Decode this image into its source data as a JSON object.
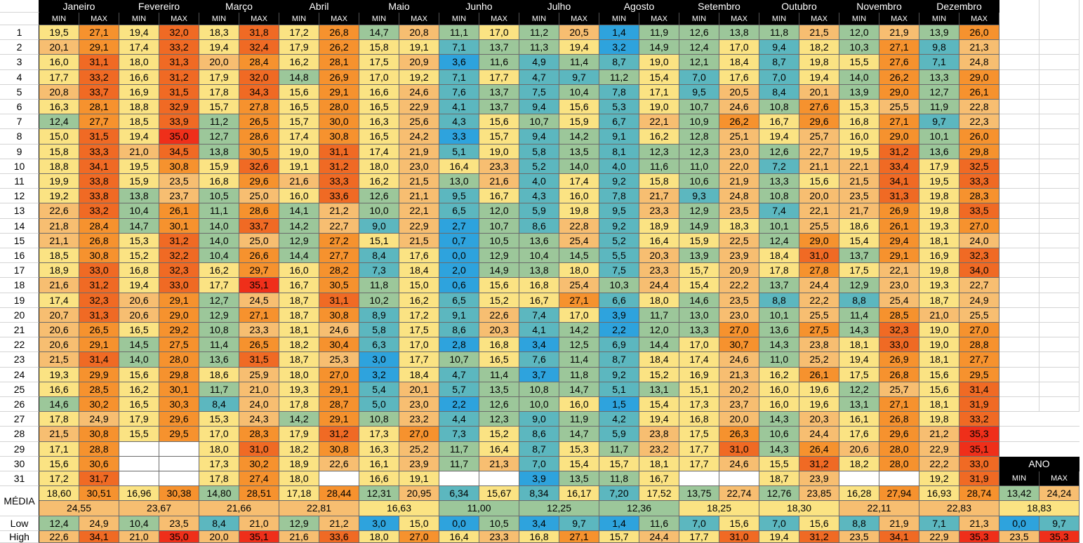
{
  "months": [
    "Janeiro",
    "Fevereiro",
    "Março",
    "Abril",
    "Maio",
    "Junho",
    "Julho",
    "Agosto",
    "Setembro",
    "Outubro",
    "Novembro",
    "Dezembro"
  ],
  "col_min": "MIN",
  "col_max": "MAX",
  "days": [
    "1",
    "2",
    "3",
    "4",
    "5",
    "6",
    "7",
    "8",
    "9",
    "10",
    "11",
    "12",
    "13",
    "14",
    "15",
    "16",
    "17",
    "18",
    "19",
    "20",
    "21",
    "22",
    "23",
    "24",
    "25",
    "26",
    "27",
    "28",
    "29",
    "30",
    "31"
  ],
  "label_media": "MÉDIA",
  "label_low": "Low",
  "label_high": "High",
  "label_ano": "ANO",
  "min": [
    [
      "19,5",
      "20,1",
      "16,0",
      "17,7",
      "20,8",
      "16,3",
      "12,4",
      "15,0",
      "15,8",
      "18,8",
      "19,9",
      "19,2",
      "22,6",
      "21,8",
      "21,1",
      "18,5",
      "18,9",
      "21,6",
      "17,4",
      "20,7",
      "20,6",
      "20,6",
      "21,5",
      "19,3",
      "16,6",
      "14,6",
      "17,8",
      "21,5",
      "17,1",
      "15,6",
      "17,2"
    ],
    [
      "19,4",
      "17,4",
      "18,0",
      "16,6",
      "16,9",
      "18,8",
      "18,5",
      "19,4",
      "21,0",
      "19,5",
      "15,9",
      "13,8",
      "10,4",
      "14,7",
      "15,3",
      "15,2",
      "16,8",
      "19,4",
      "20,6",
      "20,6",
      "16,5",
      "14,5",
      "14,0",
      "15,6",
      "16,2",
      "16,5",
      "17,9",
      "15,5",
      "",
      "",
      ""
    ],
    [
      "18,3",
      "19,4",
      "20,0",
      "17,9",
      "17,8",
      "15,7",
      "11,2",
      "12,7",
      "13,8",
      "15,9",
      "16,8",
      "10,5",
      "11,1",
      "14,0",
      "14,0",
      "10,4",
      "16,2",
      "17,7",
      "12,7",
      "12,9",
      "10,8",
      "11,4",
      "13,6",
      "18,6",
      "11,7",
      "8,4",
      "15,3",
      "17,0",
      "18,0",
      "17,3",
      "17,8"
    ],
    [
      "17,2",
      "17,9",
      "16,2",
      "14,8",
      "15,6",
      "16,5",
      "15,7",
      "17,4",
      "19,0",
      "19,1",
      "21,6",
      "16,0",
      "14,1",
      "14,2",
      "12,9",
      "14,4",
      "16,0",
      "16,7",
      "18,7",
      "18,7",
      "18,1",
      "18,2",
      "18,7",
      "18,0",
      "19,3",
      "17,8",
      "14,2",
      "17,9",
      "18,2",
      "18,9",
      "18,0"
    ],
    [
      "14,7",
      "15,8",
      "17,5",
      "17,0",
      "16,6",
      "16,5",
      "16,3",
      "16,5",
      "17,4",
      "18,0",
      "16,2",
      "12,6",
      "10,0",
      "9,0",
      "15,1",
      "8,4",
      "7,3",
      "11,8",
      "10,2",
      "8,9",
      "5,8",
      "6,3",
      "3,0",
      "3,2",
      "5,4",
      "5,0",
      "10,8",
      "17,3",
      "16,3",
      "16,1",
      "16,6"
    ],
    [
      "11,1",
      "7,1",
      "3,6",
      "7,1",
      "7,6",
      "4,1",
      "4,3",
      "3,3",
      "5,1",
      "16,4",
      "13,0",
      "9,5",
      "6,5",
      "2,7",
      "0,7",
      "0,0",
      "2,0",
      "0,6",
      "6,5",
      "9,1",
      "8,6",
      "2,8",
      "10,7",
      "4,7",
      "5,7",
      "2,2",
      "4,4",
      "7,3",
      "11,7",
      "11,7",
      ""
    ],
    [
      "11,2",
      "11,3",
      "4,9",
      "4,7",
      "7,5",
      "9,4",
      "10,7",
      "9,4",
      "5,8",
      "5,2",
      "4,0",
      "4,3",
      "5,9",
      "8,6",
      "13,6",
      "10,4",
      "13,8",
      "16,8",
      "16,7",
      "7,4",
      "4,1",
      "3,4",
      "7,6",
      "3,7",
      "10,8",
      "10,0",
      "9,0",
      "8,6",
      "8,7",
      "7,0",
      "3,9"
    ],
    [
      "1,4",
      "3,2",
      "8,7",
      "11,2",
      "7,8",
      "5,3",
      "6,7",
      "9,1",
      "8,1",
      "4,0",
      "9,2",
      "7,8",
      "9,5",
      "9,2",
      "5,2",
      "5,5",
      "7,5",
      "10,3",
      "6,6",
      "3,9",
      "2,2",
      "6,9",
      "8,7",
      "9,2",
      "5,1",
      "1,5",
      "4,2",
      "5,9",
      "11,7",
      "15,7",
      "11,8"
    ],
    [
      "12,6",
      "12,4",
      "12,1",
      "7,0",
      "9,5",
      "10,7",
      "10,9",
      "12,8",
      "12,3",
      "11,0",
      "10,6",
      "9,3",
      "12,9",
      "14,9",
      "15,9",
      "13,9",
      "15,7",
      "15,4",
      "14,6",
      "13,0",
      "13,3",
      "17,0",
      "17,4",
      "16,9",
      "15,1",
      "17,3",
      "16,8",
      "17,5",
      "17,7",
      "17,7",
      ""
    ],
    [
      "11,8",
      "9,4",
      "8,7",
      "7,0",
      "8,4",
      "10,8",
      "16,7",
      "19,4",
      "12,6",
      "7,2",
      "13,3",
      "10,8",
      "7,4",
      "10,1",
      "12,4",
      "18,4",
      "17,8",
      "13,7",
      "8,8",
      "10,1",
      "13,6",
      "14,3",
      "11,0",
      "16,2",
      "16,0",
      "16,0",
      "14,3",
      "10,6",
      "14,3",
      "15,5",
      "18,7"
    ],
    [
      "12,0",
      "10,3",
      "15,5",
      "14,0",
      "13,9",
      "15,3",
      "16,8",
      "16,0",
      "19,5",
      "22,1",
      "21,5",
      "23,5",
      "21,7",
      "18,6",
      "15,4",
      "13,7",
      "17,5",
      "12,9",
      "8,8",
      "11,4",
      "14,3",
      "18,1",
      "19,4",
      "17,5",
      "12,2",
      "13,1",
      "16,1",
      "17,6",
      "20,6",
      "18,2",
      ""
    ],
    [
      "13,9",
      "9,8",
      "7,1",
      "13,3",
      "12,7",
      "11,9",
      "9,7",
      "10,1",
      "13,6",
      "17,9",
      "19,5",
      "19,8",
      "19,8",
      "19,3",
      "18,1",
      "16,9",
      "19,8",
      "19,3",
      "18,7",
      "21,0",
      "19,0",
      "19,0",
      "18,1",
      "15,6",
      "15,6",
      "18,1",
      "19,8",
      "21,2",
      "22,9",
      "22,2",
      "19,2"
    ]
  ],
  "max": [
    [
      "27,1",
      "29,1",
      "31,1",
      "33,2",
      "33,7",
      "28,1",
      "27,7",
      "31,5",
      "33,3",
      "34,1",
      "33,8",
      "33,8",
      "33,2",
      "28,4",
      "26,8",
      "30,8",
      "33,0",
      "31,2",
      "32,3",
      "31,3",
      "26,5",
      "29,1",
      "31,4",
      "29,9",
      "28,5",
      "30,2",
      "24,9",
      "30,8",
      "28,8",
      "30,6",
      "31,7"
    ],
    [
      "32,0",
      "33,2",
      "31,3",
      "31,2",
      "31,5",
      "32,9",
      "33,9",
      "35,0",
      "34,5",
      "30,8",
      "23,5",
      "23,7",
      "26,1",
      "30,1",
      "31,2",
      "32,2",
      "32,3",
      "33,0",
      "29,1",
      "29,0",
      "29,2",
      "27,5",
      "28,0",
      "29,8",
      "30,1",
      "30,3",
      "29,6",
      "29,5",
      "",
      "",
      ""
    ],
    [
      "31,8",
      "32,4",
      "28,4",
      "32,0",
      "34,3",
      "27,8",
      "26,5",
      "28,6",
      "30,5",
      "32,6",
      "29,6",
      "25,0",
      "28,6",
      "33,7",
      "25,0",
      "26,6",
      "29,7",
      "35,1",
      "24,5",
      "27,1",
      "23,3",
      "26,5",
      "31,5",
      "25,9",
      "21,0",
      "24,0",
      "24,3",
      "28,3",
      "31,0",
      "30,2",
      "27,4"
    ],
    [
      "26,8",
      "26,2",
      "28,1",
      "26,9",
      "29,1",
      "28,0",
      "30,0",
      "30,8",
      "31,1",
      "31,2",
      "33,3",
      "33,6",
      "21,2",
      "22,7",
      "27,2",
      "27,7",
      "28,2",
      "30,5",
      "31,1",
      "30,8",
      "24,6",
      "30,4",
      "25,3",
      "27,0",
      "29,1",
      "28,7",
      "29,1",
      "31,2",
      "30,8",
      "22,6",
      ""
    ],
    [
      "20,8",
      "19,1",
      "20,9",
      "19,2",
      "24,6",
      "22,9",
      "25,6",
      "24,2",
      "21,9",
      "23,0",
      "21,5",
      "21,1",
      "22,1",
      "22,9",
      "21,5",
      "17,6",
      "18,4",
      "15,0",
      "16,2",
      "17,2",
      "17,5",
      "17,0",
      "17,7",
      "18,4",
      "20,1",
      "23,0",
      "23,2",
      "27,0",
      "25,2",
      "23,9",
      "19,1"
    ],
    [
      "17,0",
      "13,7",
      "11,6",
      "17,7",
      "13,7",
      "13,7",
      "15,6",
      "15,7",
      "19,0",
      "23,3",
      "21,6",
      "16,7",
      "12,0",
      "10,7",
      "10,5",
      "12,9",
      "14,9",
      "15,6",
      "15,2",
      "22,6",
      "20,3",
      "16,8",
      "16,5",
      "11,4",
      "13,5",
      "12,6",
      "12,3",
      "15,2",
      "16,4",
      "21,3",
      ""
    ],
    [
      "20,5",
      "19,4",
      "11,4",
      "9,7",
      "10,4",
      "15,6",
      "15,9",
      "14,2",
      "13,5",
      "14,0",
      "17,4",
      "16,0",
      "19,8",
      "22,8",
      "25,4",
      "14,5",
      "18,0",
      "25,4",
      "27,1",
      "17,0",
      "14,2",
      "12,5",
      "11,4",
      "11,8",
      "14,7",
      "16,0",
      "11,9",
      "14,7",
      "15,3",
      "15,4",
      "13,5"
    ],
    [
      "11,9",
      "14,9",
      "19,0",
      "15,4",
      "17,1",
      "19,0",
      "22,1",
      "16,2",
      "12,3",
      "11,6",
      "15,8",
      "21,7",
      "23,3",
      "18,9",
      "16,4",
      "20,3",
      "23,3",
      "24,4",
      "18,0",
      "11,7",
      "12,0",
      "14,4",
      "18,4",
      "15,2",
      "13,1",
      "15,4",
      "19,4",
      "23,8",
      "23,2",
      "18,1",
      "16,7"
    ],
    [
      "13,8",
      "17,0",
      "18,4",
      "17,6",
      "20,5",
      "24,6",
      "26,2",
      "25,1",
      "23,0",
      "22,0",
      "21,9",
      "24,8",
      "23,5",
      "18,3",
      "22,5",
      "23,9",
      "20,9",
      "22,2",
      "23,5",
      "23,0",
      "27,0",
      "30,7",
      "24,6",
      "21,3",
      "20,2",
      "23,7",
      "20,0",
      "26,3",
      "31,0",
      "24,6",
      ""
    ],
    [
      "21,5",
      "18,2",
      "19,8",
      "19,4",
      "20,1",
      "27,6",
      "29,6",
      "25,7",
      "22,7",
      "21,1",
      "15,6",
      "20,0",
      "22,1",
      "25,5",
      "29,0",
      "31,0",
      "27,8",
      "24,4",
      "22,2",
      "25,5",
      "27,5",
      "23,8",
      "25,2",
      "26,1",
      "19,6",
      "19,6",
      "20,3",
      "24,4",
      "26,4",
      "31,2",
      "23,9"
    ],
    [
      "21,9",
      "27,1",
      "27,6",
      "26,2",
      "29,0",
      "25,5",
      "27,1",
      "29,0",
      "31,2",
      "33,4",
      "34,1",
      "31,3",
      "26,9",
      "26,1",
      "29,4",
      "29,1",
      "22,1",
      "23,0",
      "25,4",
      "28,5",
      "32,3",
      "33,0",
      "26,9",
      "26,8",
      "25,7",
      "27,1",
      "26,8",
      "29,6",
      "28,0",
      "28,0",
      ""
    ],
    [
      "26,0",
      "21,3",
      "24,8",
      "29,0",
      "26,1",
      "22,8",
      "22,3",
      "26,0",
      "29,8",
      "32,5",
      "33,3",
      "28,3",
      "33,5",
      "27,0",
      "24,0",
      "32,3",
      "34,0",
      "22,7",
      "24,9",
      "25,5",
      "27,0",
      "28,8",
      "27,7",
      "29,5",
      "31,4",
      "31,9",
      "33,2",
      "35,3",
      "35,1",
      "33,0",
      "31,9"
    ]
  ],
  "media_min": [
    "18,60",
    "16,96",
    "14,80",
    "17,18",
    "12,31",
    "6,34",
    "8,34",
    "7,20",
    "13,75",
    "12,76",
    "16,28",
    "16,93"
  ],
  "media_max": [
    "30,51",
    "30,38",
    "28,51",
    "28,44",
    "20,95",
    "15,67",
    "16,17",
    "17,52",
    "22,74",
    "23,85",
    "27,94",
    "28,74"
  ],
  "media_avg": [
    "24,55",
    "23,67",
    "21,66",
    "22,81",
    "16,63",
    "11,00",
    "12,25",
    "12,36",
    "18,25",
    "18,30",
    "22,11",
    "22,83"
  ],
  "low_min": [
    "12,4",
    "10,4",
    "8,4",
    "12,9",
    "3,0",
    "0,0",
    "3,4",
    "1,4",
    "7,0",
    "7,0",
    "8,8",
    "7,1"
  ],
  "low_max": [
    "24,9",
    "23,5",
    "21,0",
    "21,2",
    "15,0",
    "10,5",
    "9,7",
    "11,6",
    "15,6",
    "15,6",
    "21,9",
    "21,3"
  ],
  "high_min": [
    "22,6",
    "21,0",
    "20,0",
    "21,6",
    "18,0",
    "16,4",
    "16,8",
    "15,7",
    "17,7",
    "19,4",
    "23,5",
    "22,9"
  ],
  "high_max": [
    "34,1",
    "35,0",
    "35,1",
    "33,6",
    "27,0",
    "23,3",
    "27,1",
    "24,4",
    "31,0",
    "31,2",
    "34,1",
    "35,3"
  ],
  "ano": {
    "media_min": "13,42",
    "media_max": "24,24",
    "media_avg": "18,83",
    "low_min": "0,0",
    "low_max": "9,7",
    "high_min": "23,5",
    "high_max": "35,3"
  },
  "colors": {
    "blue": "#2ea3dd",
    "teal": "#5cb7bf",
    "sage": "#9cc79a",
    "yellow": "#fbe383",
    "peach": "#f7be71",
    "orange": "#f6922e",
    "deep_orange": "#f06a24",
    "red": "#ef2f1a",
    "ano_header": "#000000",
    "avg_row": "#fbe383"
  }
}
